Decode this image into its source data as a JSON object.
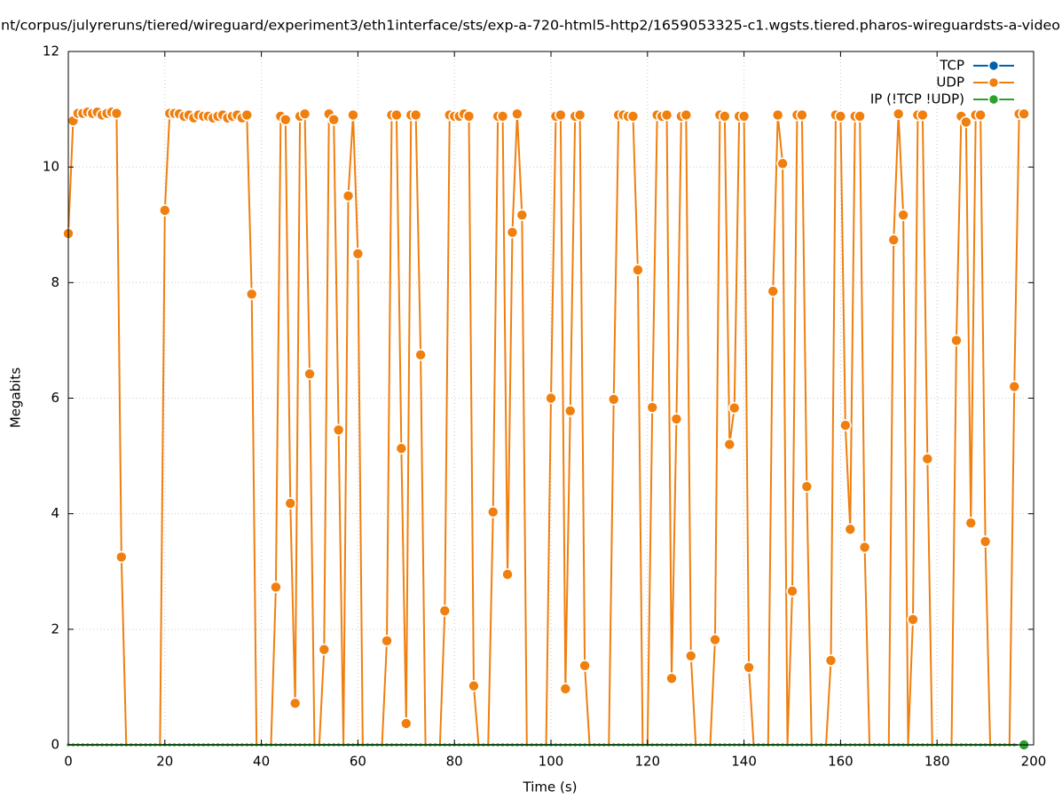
{
  "chart_data": {
    "type": "line",
    "title": "nt/corpus/julyreruns/tiered/wireguard/experiment3/eth1interface/sts/exp-a-720-html5-http2/1659053325-c1.wgsts.tiered.pharos-wireguardsts-a-video",
    "xlabel": "Time (s)",
    "ylabel": "Megabits",
    "xlim": [
      0,
      200
    ],
    "xticks": [
      0,
      20,
      40,
      60,
      80,
      100,
      120,
      140,
      160,
      180,
      200
    ],
    "ylim": [
      0,
      12
    ],
    "yticks": [
      0,
      2,
      4,
      6,
      8,
      10,
      12
    ],
    "grid": true,
    "legend": "top-right",
    "x": [
      0,
      1,
      2,
      3,
      4,
      5,
      6,
      7,
      8,
      9,
      10,
      11,
      12,
      13,
      14,
      15,
      16,
      17,
      18,
      19,
      20,
      21,
      22,
      23,
      24,
      25,
      26,
      27,
      28,
      29,
      30,
      31,
      32,
      33,
      34,
      35,
      36,
      37,
      38,
      39,
      40,
      41,
      42,
      43,
      44,
      45,
      46,
      47,
      48,
      49,
      50,
      51,
      52,
      53,
      54,
      55,
      56,
      57,
      58,
      59,
      60,
      61,
      62,
      63,
      64,
      65,
      66,
      67,
      68,
      69,
      70,
      71,
      72,
      73,
      74,
      75,
      76,
      77,
      78,
      79,
      80,
      81,
      82,
      83,
      84,
      85,
      86,
      87,
      88,
      89,
      90,
      91,
      92,
      93,
      94,
      95,
      96,
      97,
      98,
      99,
      100,
      101,
      102,
      103,
      104,
      105,
      106,
      107,
      108,
      109,
      110,
      111,
      112,
      113,
      114,
      115,
      116,
      117,
      118,
      119,
      120,
      121,
      122,
      123,
      124,
      125,
      126,
      127,
      128,
      129,
      130,
      131,
      132,
      133,
      134,
      135,
      136,
      137,
      138,
      139,
      140,
      141,
      142,
      143,
      144,
      145,
      146,
      147,
      148,
      149,
      150,
      151,
      152,
      153,
      154,
      155,
      156,
      157,
      158,
      159,
      160,
      161,
      162,
      163,
      164,
      165,
      166,
      167,
      168,
      169,
      170,
      171,
      172,
      173,
      174,
      175,
      176,
      177,
      178,
      179,
      180,
      181,
      182,
      183,
      184,
      185,
      186,
      187,
      188,
      189,
      190,
      191,
      192,
      193,
      194,
      195,
      196,
      197,
      198
    ],
    "series": [
      {
        "name": "TCP",
        "color": "#0060ad",
        "values": [
          0,
          0,
          0,
          0,
          0,
          0,
          0,
          0,
          0,
          0,
          0,
          0,
          0,
          0,
          0,
          0,
          0,
          0,
          0,
          0,
          0,
          0,
          0,
          0,
          0,
          0,
          0,
          0,
          0,
          0,
          0,
          0,
          0,
          0,
          0,
          0,
          0,
          0,
          0,
          0,
          0,
          0,
          0,
          0,
          0,
          0,
          0,
          0,
          0,
          0,
          0,
          0,
          0,
          0,
          0,
          0,
          0,
          0,
          0,
          0,
          0,
          0,
          0,
          0,
          0,
          0,
          0,
          0,
          0,
          0,
          0,
          0,
          0,
          0,
          0,
          0,
          0,
          0,
          0,
          0,
          0,
          0,
          0,
          0,
          0,
          0,
          0,
          0,
          0,
          0,
          0,
          0,
          0,
          0,
          0,
          0,
          0,
          0,
          0,
          0,
          0,
          0,
          0,
          0,
          0,
          0,
          0,
          0,
          0,
          0,
          0,
          0,
          0,
          0,
          0,
          0,
          0,
          0,
          0,
          0,
          0,
          0,
          0,
          0,
          0,
          0,
          0,
          0,
          0,
          0,
          0,
          0,
          0,
          0,
          0,
          0,
          0,
          0,
          0,
          0,
          0,
          0,
          0,
          0,
          0,
          0,
          0,
          0,
          0,
          0,
          0,
          0,
          0,
          0,
          0,
          0,
          0,
          0,
          0,
          0,
          0,
          0,
          0,
          0,
          0,
          0,
          0,
          0,
          0,
          0,
          0,
          0,
          0,
          0,
          0,
          0,
          0,
          0,
          0,
          0,
          0,
          0,
          0,
          0,
          0,
          0,
          0,
          0,
          0,
          0,
          0,
          0,
          0,
          0,
          0,
          0,
          0,
          0,
          0
        ]
      },
      {
        "name": "UDP",
        "color": "#f07f0e",
        "values": [
          8.85,
          10.8,
          10.93,
          10.93,
          10.95,
          10.93,
          10.95,
          10.9,
          10.93,
          10.95,
          10.93,
          3.25,
          0,
          0,
          0,
          0,
          0,
          0,
          0,
          0,
          9.25,
          10.93,
          10.93,
          10.92,
          10.88,
          10.9,
          10.85,
          10.9,
          10.88,
          10.88,
          10.85,
          10.88,
          10.9,
          10.85,
          10.88,
          10.9,
          10.85,
          10.9,
          7.8,
          0,
          0,
          0,
          0,
          2.73,
          10.88,
          10.82,
          4.18,
          0.72,
          10.88,
          10.92,
          6.42,
          0,
          0,
          1.65,
          10.92,
          10.82,
          5.45,
          0,
          9.5,
          10.9,
          8.5,
          0,
          0,
          0,
          0,
          0,
          1.8,
          10.9,
          10.9,
          5.13,
          0.37,
          10.9,
          10.9,
          6.75,
          0,
          0,
          0,
          0,
          2.32,
          10.9,
          10.88,
          10.88,
          10.92,
          10.88,
          1.02,
          0,
          0,
          0,
          4.03,
          10.88,
          10.88,
          2.95,
          8.87,
          10.92,
          9.17,
          0,
          0,
          0,
          0,
          0,
          6.0,
          10.88,
          10.9,
          0.97,
          5.78,
          10.88,
          10.9,
          1.37,
          0,
          0,
          0,
          0,
          0,
          5.98,
          10.9,
          10.9,
          10.88,
          10.88,
          8.22,
          0,
          0,
          5.84,
          10.9,
          10.88,
          10.9,
          1.15,
          5.64,
          10.88,
          10.9,
          1.54,
          0,
          0,
          0,
          0,
          1.82,
          10.9,
          10.88,
          5.2,
          5.83,
          10.88,
          10.88,
          1.34,
          0,
          0,
          0,
          0,
          7.85,
          10.9,
          10.06,
          0,
          2.66,
          10.9,
          10.9,
          4.47,
          0,
          0,
          0,
          0,
          1.46,
          10.9,
          10.88,
          5.53,
          3.73,
          10.88,
          10.88,
          3.42,
          0,
          0,
          0,
          0,
          0,
          8.74,
          10.92,
          9.17,
          0,
          2.17,
          10.9,
          10.9,
          4.95,
          0,
          0,
          0,
          0,
          0,
          7.0,
          10.88,
          10.78,
          3.84,
          10.9,
          10.9,
          3.52,
          0,
          0,
          0,
          0,
          0,
          6.2,
          10.92,
          10.92
        ]
      },
      {
        "name": "IP (!TCP  !UDP)",
        "color": "#2ca02c",
        "values": [
          0,
          0,
          0,
          0,
          0,
          0,
          0,
          0,
          0,
          0,
          0,
          0,
          0,
          0,
          0,
          0,
          0,
          0,
          0,
          0,
          0,
          0,
          0,
          0,
          0,
          0,
          0,
          0,
          0,
          0,
          0,
          0,
          0,
          0,
          0,
          0,
          0,
          0,
          0,
          0,
          0,
          0,
          0,
          0,
          0,
          0,
          0,
          0,
          0,
          0,
          0,
          0,
          0,
          0,
          0,
          0,
          0,
          0,
          0,
          0,
          0,
          0,
          0,
          0,
          0,
          0,
          0,
          0,
          0,
          0,
          0,
          0,
          0,
          0,
          0,
          0,
          0,
          0,
          0,
          0,
          0,
          0,
          0,
          0,
          0,
          0,
          0,
          0,
          0,
          0,
          0,
          0,
          0,
          0,
          0,
          0,
          0,
          0,
          0,
          0,
          0,
          0,
          0,
          0,
          0,
          0,
          0,
          0,
          0,
          0,
          0,
          0,
          0,
          0,
          0,
          0,
          0,
          0,
          0,
          0,
          0,
          0,
          0,
          0,
          0,
          0,
          0,
          0,
          0,
          0,
          0,
          0,
          0,
          0,
          0,
          0,
          0,
          0,
          0,
          0,
          0,
          0,
          0,
          0,
          0,
          0,
          0,
          0,
          0,
          0,
          0,
          0,
          0,
          0,
          0,
          0,
          0,
          0,
          0,
          0,
          0,
          0,
          0,
          0,
          0,
          0,
          0,
          0,
          0,
          0,
          0,
          0,
          0,
          0,
          0,
          0,
          0,
          0,
          0,
          0,
          0,
          0,
          0,
          0,
          0,
          0,
          0,
          0,
          0,
          0,
          0,
          0,
          0,
          0,
          0,
          0,
          0,
          0,
          0
        ]
      }
    ]
  }
}
